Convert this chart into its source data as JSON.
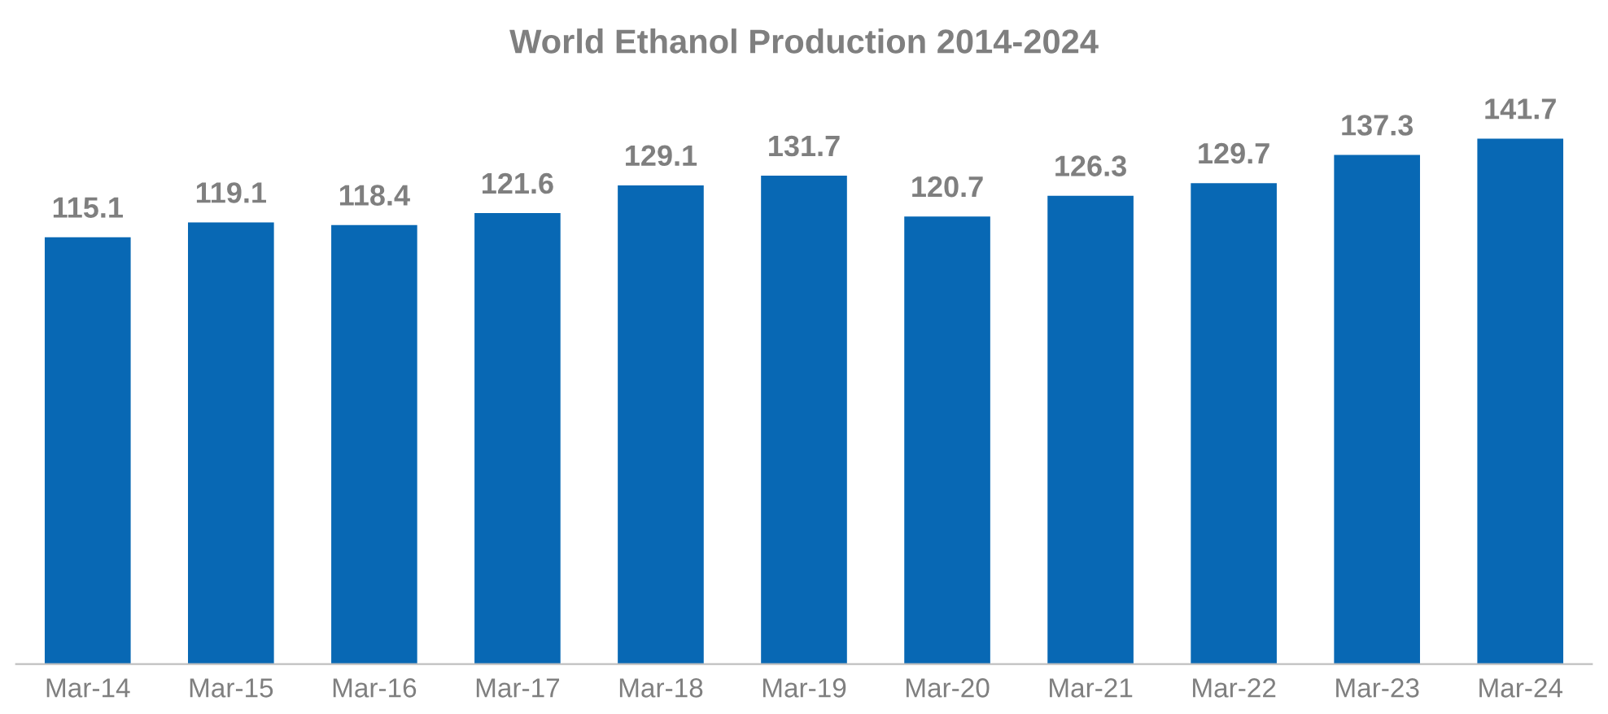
{
  "chart_data": {
    "type": "bar",
    "title": "World Ethanol Production 2014-2024",
    "categories": [
      "Mar-14",
      "Mar-15",
      "Mar-16",
      "Mar-17",
      "Mar-18",
      "Mar-19",
      "Mar-20",
      "Mar-21",
      "Mar-22",
      "Mar-23",
      "Mar-24"
    ],
    "values": [
      115.1,
      119.1,
      118.4,
      121.6,
      129.1,
      131.7,
      120.7,
      126.3,
      129.7,
      137.3,
      141.7
    ],
    "color": "#0868b4",
    "data_labels": true,
    "grid": false,
    "legend": false,
    "tick_labels": "x"
  }
}
